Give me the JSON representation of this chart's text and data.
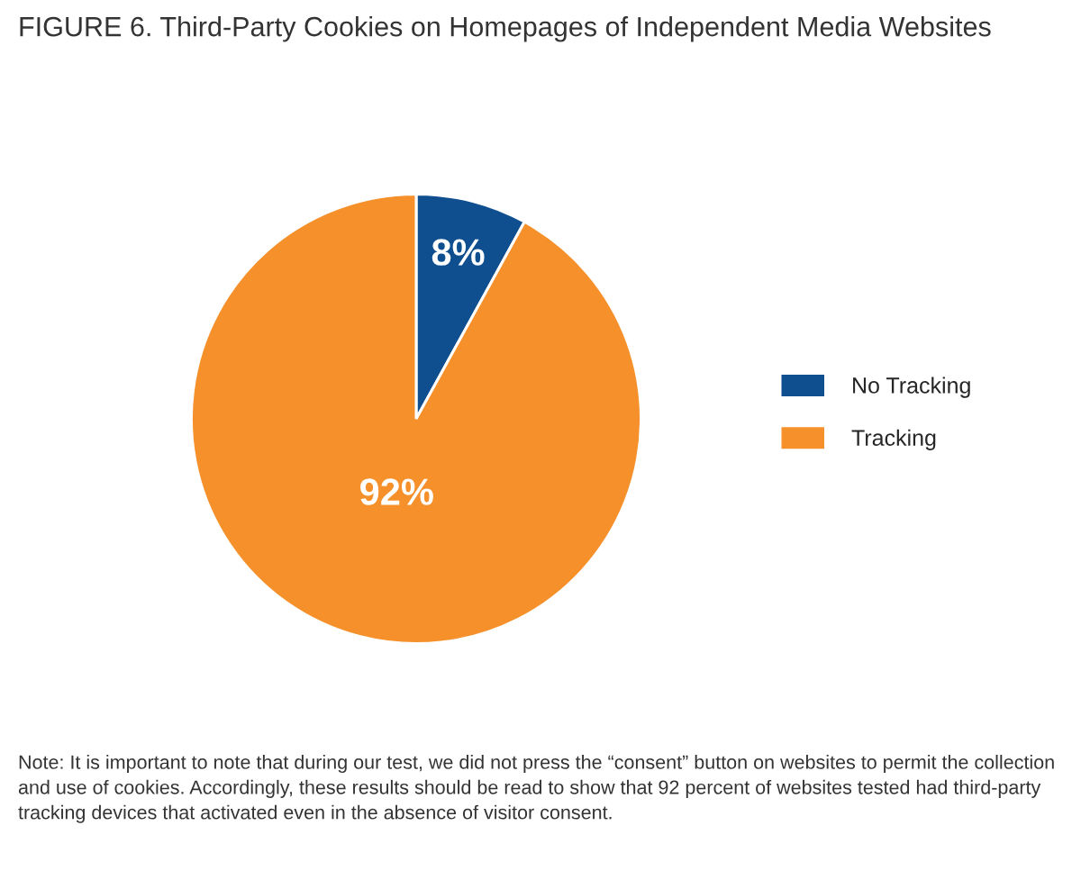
{
  "chart_data": {
    "type": "pie",
    "title": "FIGURE 6. Third-Party Cookies on Homepages of Independent Media Websites",
    "categories": [
      "No Tracking",
      "Tracking"
    ],
    "values": [
      8,
      92
    ],
    "colors": [
      "#0f4f8f",
      "#f5902b"
    ],
    "value_labels": [
      "8%",
      "92%"
    ],
    "legend": "right",
    "annotations": [
      "Note: It is important to note that during our test, we did not press the “consent” button on websites to permit the collection and use of cookies. Accordingly, these results should be read to show that 92 percent of websites tested had third-party tracking devices that activated even in the absence of visitor consent."
    ]
  }
}
